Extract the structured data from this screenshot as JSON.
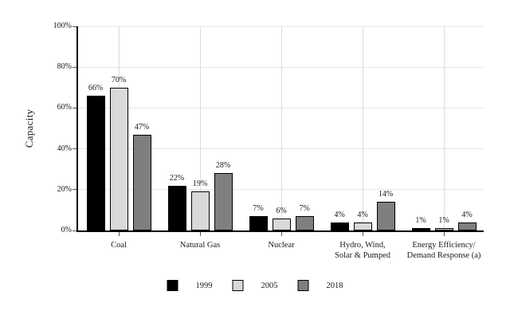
{
  "chart_data": {
    "type": "bar",
    "title": "",
    "ylabel": "Capacity",
    "xlabel": "",
    "ylim": [
      0,
      100
    ],
    "yticks": [
      0,
      20,
      40,
      60,
      80,
      100
    ],
    "ytick_suffix": "%",
    "grid": true,
    "legend_position": "bottom-center",
    "value_label_format": "{v}%",
    "categories": [
      "Coal",
      "Natural Gas",
      "Nuclear",
      "Hydro, Wind,\nSolar & Pumped",
      "Energy Efficiency/\nDemand Response (a)"
    ],
    "series": [
      {
        "name": "1999",
        "color": "#000000",
        "values": [
          66,
          22,
          7,
          4,
          1
        ]
      },
      {
        "name": "2005",
        "color": "#d9d9d9",
        "values": [
          70,
          19,
          6,
          4,
          1
        ]
      },
      {
        "name": "2018",
        "color": "#7f7f7f",
        "values": [
          47,
          28,
          7,
          14,
          4
        ]
      }
    ]
  },
  "colors": {
    "background": "#ffffff",
    "axis": "#000000",
    "grid_horizontal": "#e8e8e8",
    "grid_vertical": "#dcdcdc",
    "text": "#1a1a1a",
    "bar_border": "#000000"
  }
}
